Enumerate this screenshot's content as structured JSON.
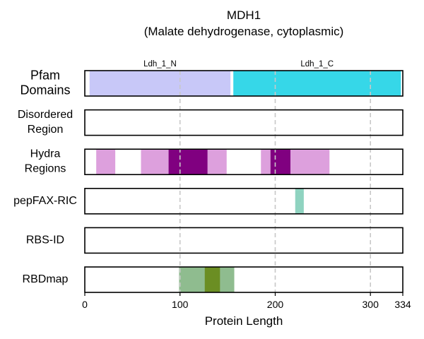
{
  "chart_data": {
    "type": "bar",
    "title": "MDH1",
    "subtitle": "(Malate dehydrogenase, cytoplasmic)",
    "xlabel": "Protein Length",
    "xlim": [
      0,
      334
    ],
    "xticks": [
      0,
      100,
      200,
      300,
      334
    ],
    "grid_x": [
      100,
      200,
      300
    ],
    "tracks": [
      {
        "label": [
          "Pfam",
          "Domains"
        ],
        "segments": [
          {
            "name": "Ldh_1_N",
            "start": 5,
            "end": 153,
            "color": "#c8c8f8"
          },
          {
            "name": "Ldh_1_C",
            "start": 156,
            "end": 332,
            "color": "#36d7e8"
          }
        ]
      },
      {
        "label": [
          "Disordered",
          "Region"
        ],
        "segments": []
      },
      {
        "label": [
          "Hydra",
          "Regions"
        ],
        "segments": [
          {
            "start": 12,
            "end": 32,
            "color": "#dda0dd"
          },
          {
            "start": 59,
            "end": 88,
            "color": "#dda0dd"
          },
          {
            "start": 88,
            "end": 129,
            "color": "#800080"
          },
          {
            "start": 129,
            "end": 149,
            "color": "#dda0dd"
          },
          {
            "start": 185,
            "end": 195,
            "color": "#dda0dd"
          },
          {
            "start": 195,
            "end": 216,
            "color": "#800080"
          },
          {
            "start": 216,
            "end": 257,
            "color": "#dda0dd"
          }
        ]
      },
      {
        "label": [
          "pepFAX-RIC"
        ],
        "segments": [
          {
            "start": 221,
            "end": 230,
            "color": "#8fd3c0"
          }
        ]
      },
      {
        "label": [
          "RBS-ID"
        ],
        "segments": []
      },
      {
        "label": [
          "RBDmap"
        ],
        "segments": [
          {
            "start": 99,
            "end": 157,
            "color": "#8fbc8f"
          },
          {
            "start": 126,
            "end": 142,
            "color": "#6b8e23"
          }
        ]
      }
    ]
  }
}
